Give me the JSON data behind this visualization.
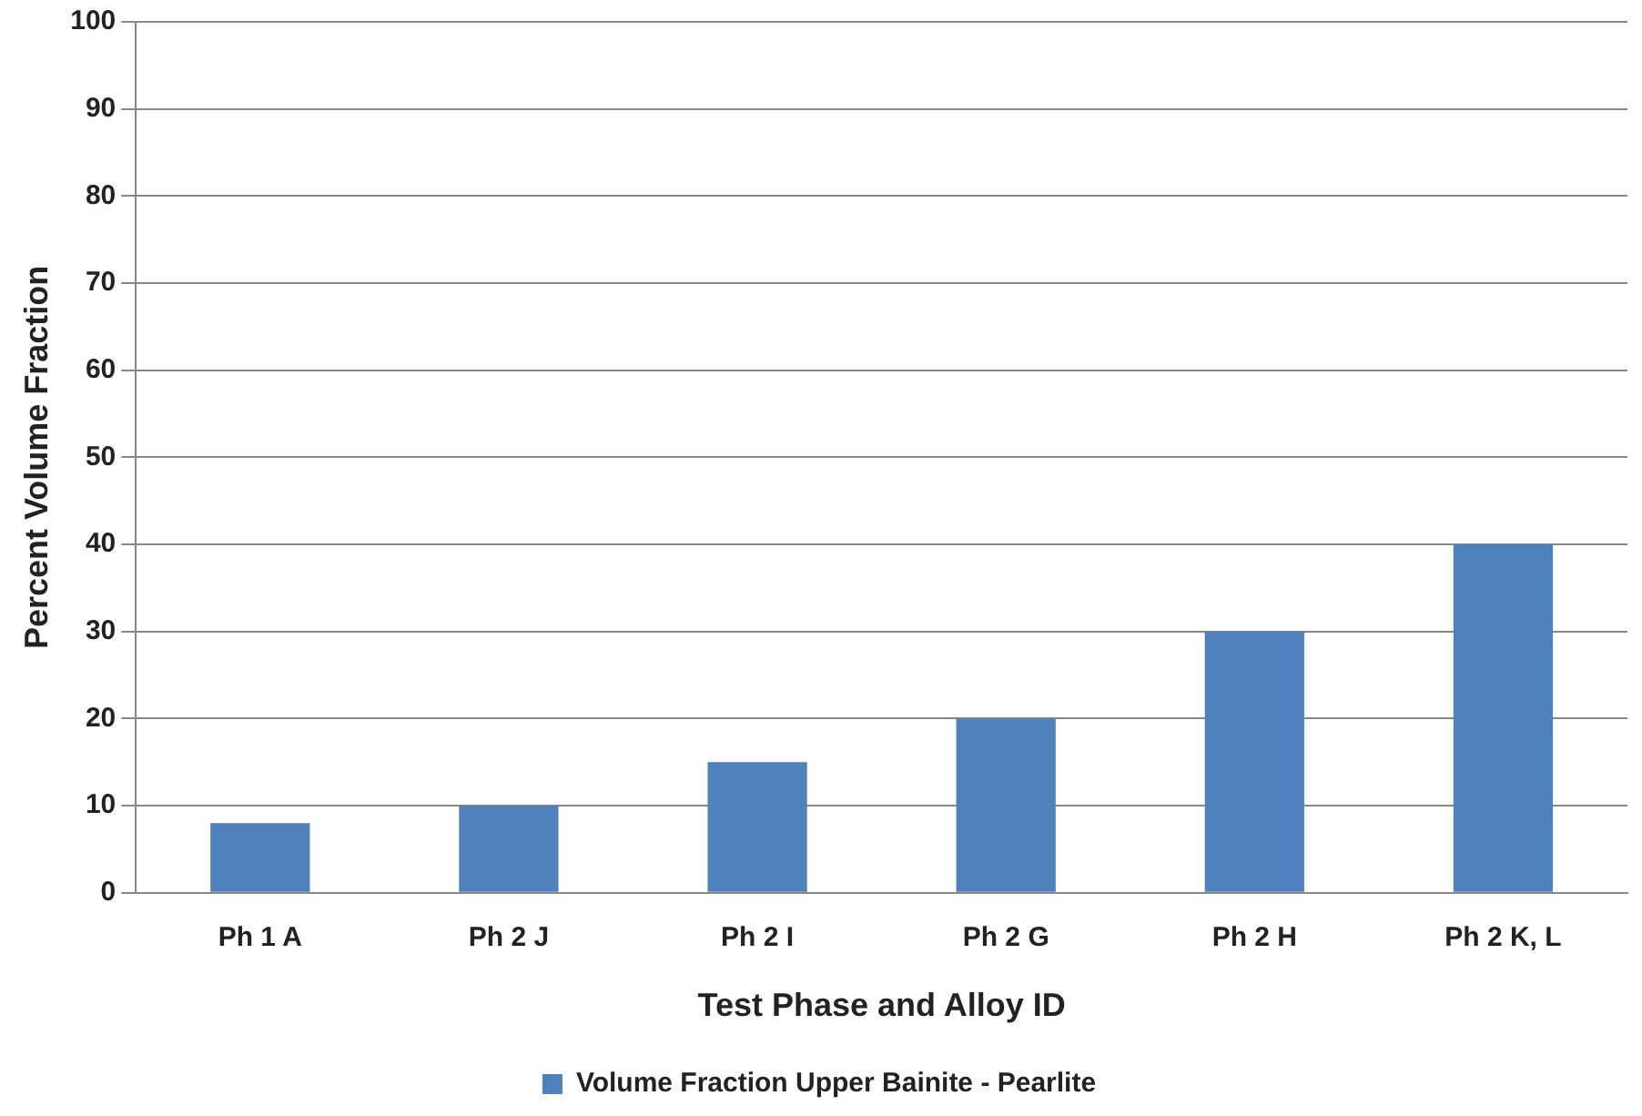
{
  "chart_data": {
    "type": "bar",
    "xlabel": "Test Phase and Alloy ID",
    "ylabel": "Percent Volume Fraction",
    "categories": [
      "Ph 1 A",
      "Ph 2 J",
      "Ph 2 I",
      "Ph 2 G",
      "Ph 2 H",
      "Ph 2 K, L"
    ],
    "series": [
      {
        "name": "Volume Fraction Upper Bainite - Pearlite",
        "color": "#4f81bd",
        "values": [
          8,
          10,
          15,
          20,
          30,
          40
        ]
      }
    ],
    "ylim": [
      0,
      100
    ],
    "yticks": [
      0,
      10,
      20,
      30,
      40,
      50,
      60,
      70,
      80,
      90,
      100
    ],
    "grid": "y",
    "legend": "bottom"
  }
}
